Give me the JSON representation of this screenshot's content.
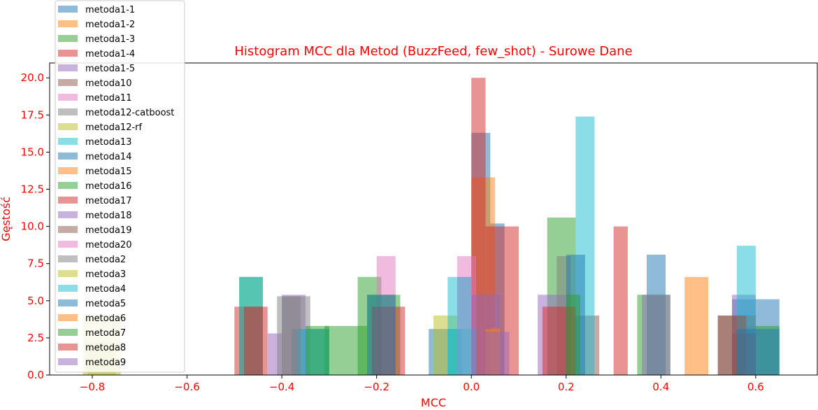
{
  "chart_data": {
    "type": "bar",
    "title": "Histogram MCC dla Metod (BuzzFeed, few_shot) - Surowe Dane",
    "xlabel": "MCC",
    "ylabel": "Gęstość",
    "xlim": [
      -0.89,
      0.73
    ],
    "ylim": [
      0,
      21
    ],
    "xticks": [
      -0.8,
      -0.6,
      -0.4,
      -0.2,
      0.0,
      0.2,
      0.4,
      0.6
    ],
    "xtick_labels": [
      "−0.8",
      "−0.6",
      "−0.4",
      "−0.2",
      "0.0",
      "0.2",
      "0.4",
      "0.6"
    ],
    "yticks": [
      0,
      2.5,
      5,
      7.5,
      10,
      12.5,
      15,
      17.5,
      20
    ],
    "ytick_labels": [
      "0.0",
      "2.5",
      "5.0",
      "7.5",
      "10.0",
      "12.5",
      "15.0",
      "17.5",
      "20.0"
    ],
    "grid": false,
    "legend_position": "upper-left",
    "alpha": 0.5,
    "series": [
      {
        "name": "metoda1-1",
        "color": "#1f77b4",
        "bins": [
          [
            -0.38,
            -0.3,
            3.1
          ],
          [
            -0.09,
            -0.02,
            3.1
          ],
          [
            0.0,
            0.04,
            16.3
          ],
          [
            0.04,
            0.07,
            10.2
          ],
          [
            0.55,
            0.65,
            5.1
          ]
        ]
      },
      {
        "name": "metoda1-2",
        "color": "#ff7f0e",
        "bins": [
          [
            0.0,
            0.05,
            13.3
          ],
          [
            0.45,
            0.5,
            6.6
          ]
        ]
      },
      {
        "name": "metoda1-3",
        "color": "#2ca02c",
        "bins": [
          [
            -0.49,
            -0.44,
            6.6
          ],
          [
            -0.31,
            -0.22,
            3.3
          ],
          [
            -0.24,
            -0.19,
            6.6
          ],
          [
            0.16,
            0.22,
            10.6
          ],
          [
            0.58,
            0.65,
            3.3
          ]
        ]
      },
      {
        "name": "metoda1-4",
        "color": "#d62728",
        "bins": [
          [
            0.0,
            0.03,
            20.0
          ],
          [
            0.03,
            0.1,
            10.0
          ],
          [
            0.3,
            0.33,
            10.0
          ]
        ]
      },
      {
        "name": "metoda1-5",
        "color": "#9467bd",
        "bins": [
          [
            -0.4,
            -0.35,
            5.4
          ],
          [
            0.14,
            0.2,
            5.4
          ],
          [
            0.55,
            0.6,
            5.4
          ]
        ]
      },
      {
        "name": "metoda10",
        "color": "#8c564b",
        "bins": [
          [
            0.22,
            0.27,
            4.0
          ],
          [
            0.52,
            0.6,
            4.0
          ]
        ]
      },
      {
        "name": "metoda11",
        "color": "#e377c2",
        "bins": [
          [
            -0.2,
            -0.16,
            8.0
          ],
          [
            -0.03,
            0.01,
            8.0
          ]
        ]
      },
      {
        "name": "metoda12-catboost",
        "color": "#7f7f7f",
        "bins": [
          [
            -0.4,
            -0.34,
            5.3
          ],
          [
            0.18,
            0.21,
            8.0
          ]
        ]
      },
      {
        "name": "metoda12-rf",
        "color": "#bcbd22",
        "bins": [
          [
            -0.82,
            -0.74,
            4.0
          ],
          [
            -0.08,
            -0.03,
            4.0
          ]
        ]
      },
      {
        "name": "metoda13",
        "color": "#17becf",
        "bins": [
          [
            -0.37,
            -0.3,
            3.1
          ],
          [
            -0.05,
            0.01,
            3.1
          ],
          [
            0.22,
            0.26,
            17.4
          ],
          [
            0.56,
            0.6,
            8.7
          ]
        ]
      },
      {
        "name": "metoda14",
        "color": "#1f77b4",
        "bins": [
          [
            0.37,
            0.41,
            8.1
          ],
          [
            0.2,
            0.24,
            8.1
          ]
        ]
      },
      {
        "name": "metoda15",
        "color": "#ff7f0e",
        "bins": [
          [
            0.04,
            0.06,
            3.2
          ]
        ]
      },
      {
        "name": "metoda16",
        "color": "#2ca02c",
        "bins": [
          [
            -0.22,
            -0.15,
            5.4
          ],
          [
            0.35,
            0.42,
            5.4
          ]
        ]
      },
      {
        "name": "metoda17",
        "color": "#d62728",
        "bins": [
          [
            -0.5,
            -0.43,
            4.6
          ],
          [
            -0.21,
            -0.14,
            4.6
          ],
          [
            0.15,
            0.22,
            4.6
          ]
        ]
      },
      {
        "name": "metoda18",
        "color": "#9467bd",
        "bins": [
          [
            -0.43,
            -0.4,
            2.8
          ],
          [
            0.0,
            0.06,
            5.4
          ],
          [
            0.36,
            0.42,
            5.4
          ]
        ]
      },
      {
        "name": "metoda19",
        "color": "#8c564b",
        "bins": [
          [
            0.52,
            0.58,
            4.0
          ],
          [
            0.55,
            0.6,
            2.8
          ]
        ]
      },
      {
        "name": "metoda20",
        "color": "#e377c2",
        "bins": [
          [
            -0.03,
            0.0,
            6.6
          ]
        ]
      },
      {
        "name": "metoda2",
        "color": "#7f7f7f",
        "bins": [
          [
            -0.41,
            -0.36,
            5.3
          ]
        ]
      },
      {
        "name": "metoda3",
        "color": "#bcbd22",
        "bins": [
          [
            -0.81,
            -0.75,
            2.0
          ]
        ]
      },
      {
        "name": "metoda4",
        "color": "#17becf",
        "bins": [
          [
            -0.05,
            0.0,
            6.6
          ],
          [
            -0.49,
            -0.44,
            6.6
          ]
        ]
      },
      {
        "name": "metoda5",
        "color": "#1f77b4",
        "bins": [
          [
            -0.22,
            -0.16,
            5.4
          ],
          [
            0.56,
            0.65,
            3.1
          ]
        ]
      },
      {
        "name": "metoda6",
        "color": "#ff7f0e",
        "bins": [
          [
            0.03,
            0.06,
            3.1
          ]
        ]
      },
      {
        "name": "metoda7",
        "color": "#2ca02c",
        "bins": [
          [
            -0.35,
            -0.3,
            3.3
          ],
          [
            0.2,
            0.23,
            5.4
          ]
        ]
      },
      {
        "name": "metoda8",
        "color": "#d62728",
        "bins": [
          [
            -0.48,
            -0.44,
            4.6
          ]
        ]
      },
      {
        "name": "metoda9",
        "color": "#9467bd",
        "bins": [
          [
            0.03,
            0.08,
            2.9
          ]
        ]
      }
    ]
  }
}
